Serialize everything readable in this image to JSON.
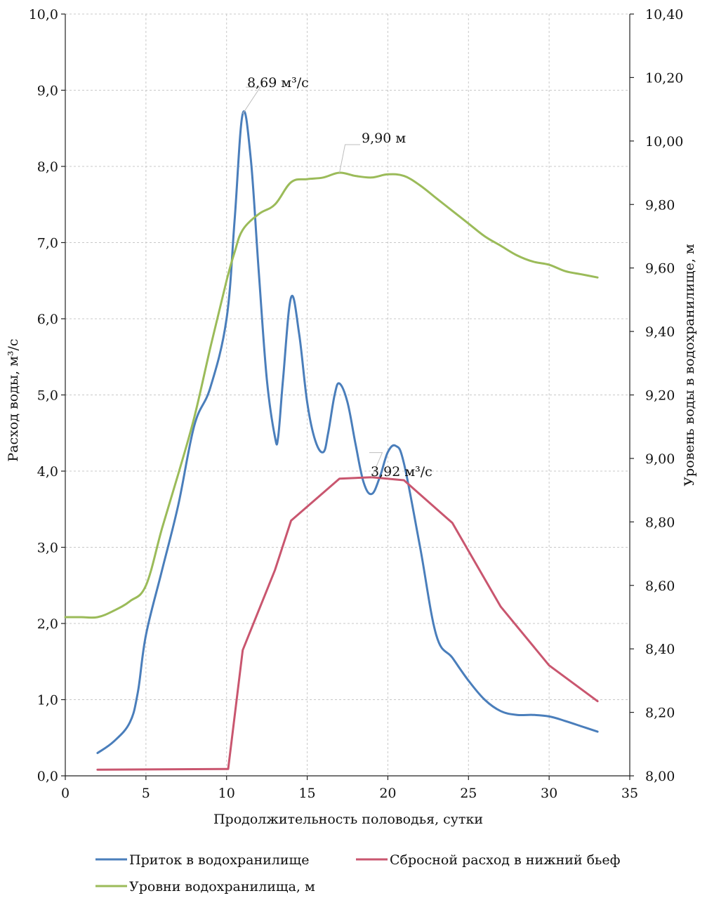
{
  "chart_data": {
    "type": "line",
    "xlabel": "Продолжительность половодья, сутки",
    "ylabel_left": "Расход воды, м³/с",
    "ylabel_right": "Уровень воды в водохранилище, м",
    "xlim": [
      0,
      35
    ],
    "ylim_left": [
      0,
      10
    ],
    "ylim_right": [
      8.0,
      10.4
    ],
    "xticks": [
      0,
      5,
      10,
      15,
      20,
      25,
      30,
      35
    ],
    "xtick_labels": [
      "0",
      "5",
      "10",
      "15",
      "20",
      "25",
      "30",
      "35"
    ],
    "yticks_left": [
      0,
      1,
      2,
      3,
      4,
      5,
      6,
      7,
      8,
      9,
      10
    ],
    "ytick_labels_left": [
      "0,0",
      "1,0",
      "2,0",
      "3,0",
      "4,0",
      "5,0",
      "6,0",
      "7,0",
      "8,0",
      "9,0",
      "10,0"
    ],
    "yticks_right": [
      8.0,
      8.2,
      8.4,
      8.6,
      8.8,
      9.0,
      9.2,
      9.4,
      9.6,
      9.8,
      10.0,
      10.2,
      10.4
    ],
    "ytick_labels_right": [
      "8,00",
      "8,20",
      "8,40",
      "8,60",
      "8,80",
      "9,00",
      "9,20",
      "9,40",
      "9,60",
      "9,80",
      "10,00",
      "10,20",
      "10,40"
    ],
    "grid": true,
    "legend_position": "bottom",
    "series": [
      {
        "name": "Приток в водохранилище",
        "axis": "left",
        "color": "#4a7ebb",
        "x": [
          2,
          3,
          4,
          4.5,
          5,
          6,
          7,
          8,
          9,
          10,
          10.5,
          11,
          11.5,
          12,
          12.5,
          13,
          13.2,
          13.5,
          14,
          14.5,
          15,
          15.5,
          16,
          16.3,
          16.7,
          17,
          17.5,
          18,
          18.5,
          19,
          19.5,
          20,
          20.5,
          21,
          22,
          23,
          24,
          25,
          26,
          27,
          28,
          29,
          30,
          31,
          32,
          33
        ],
        "y": [
          0.3,
          0.45,
          0.7,
          1.1,
          1.85,
          2.7,
          3.55,
          4.6,
          5.1,
          6.0,
          7.3,
          8.69,
          8.1,
          6.6,
          5.2,
          4.45,
          4.45,
          5.2,
          6.28,
          5.8,
          4.9,
          4.4,
          4.25,
          4.5,
          5.0,
          5.15,
          4.9,
          4.35,
          3.85,
          3.7,
          3.92,
          4.25,
          4.33,
          4.1,
          3.0,
          1.85,
          1.55,
          1.25,
          1.0,
          0.85,
          0.8,
          0.8,
          0.78,
          0.72,
          0.65,
          0.58
        ]
      },
      {
        "name": "Сбросной расход в нижний бьеф",
        "axis": "left",
        "color": "#c9566f",
        "x": [
          2,
          10,
          10.1,
          11,
          13,
          14,
          17,
          19,
          21,
          24,
          27,
          30,
          33
        ],
        "y": [
          0.08,
          0.09,
          0.09,
          1.65,
          2.7,
          3.35,
          3.9,
          3.92,
          3.88,
          3.32,
          2.22,
          1.45,
          0.98
        ]
      },
      {
        "name": "Уровни водохранилища, м",
        "axis": "right",
        "color": "#9bbb59",
        "x": [
          0,
          1,
          2,
          3,
          4,
          5,
          6,
          7,
          8,
          9,
          10,
          10.5,
          11,
          12,
          13,
          14,
          15,
          16,
          17,
          18,
          19,
          20,
          21,
          22,
          23,
          24,
          25,
          26,
          27,
          28,
          29,
          30,
          31,
          32,
          33
        ],
        "y": [
          8.5,
          8.5,
          8.5,
          8.52,
          8.55,
          8.6,
          8.78,
          8.95,
          9.13,
          9.35,
          9.56,
          9.65,
          9.72,
          9.77,
          9.8,
          9.87,
          9.88,
          9.885,
          9.9,
          9.89,
          9.885,
          9.895,
          9.89,
          9.86,
          9.82,
          9.78,
          9.74,
          9.7,
          9.67,
          9.64,
          9.62,
          9.61,
          9.59,
          9.58,
          9.57
        ]
      }
    ],
    "annotations": [
      {
        "text": "8,69 м³/с",
        "target_x": 11,
        "target_y": 8.69,
        "axis": "left"
      },
      {
        "text": "9,90 м",
        "target_x": 17,
        "target_y": 9.9,
        "axis": "right"
      },
      {
        "text": "3,92 м³/с",
        "target_x": 19,
        "target_y": 3.92,
        "axis": "left"
      }
    ]
  }
}
